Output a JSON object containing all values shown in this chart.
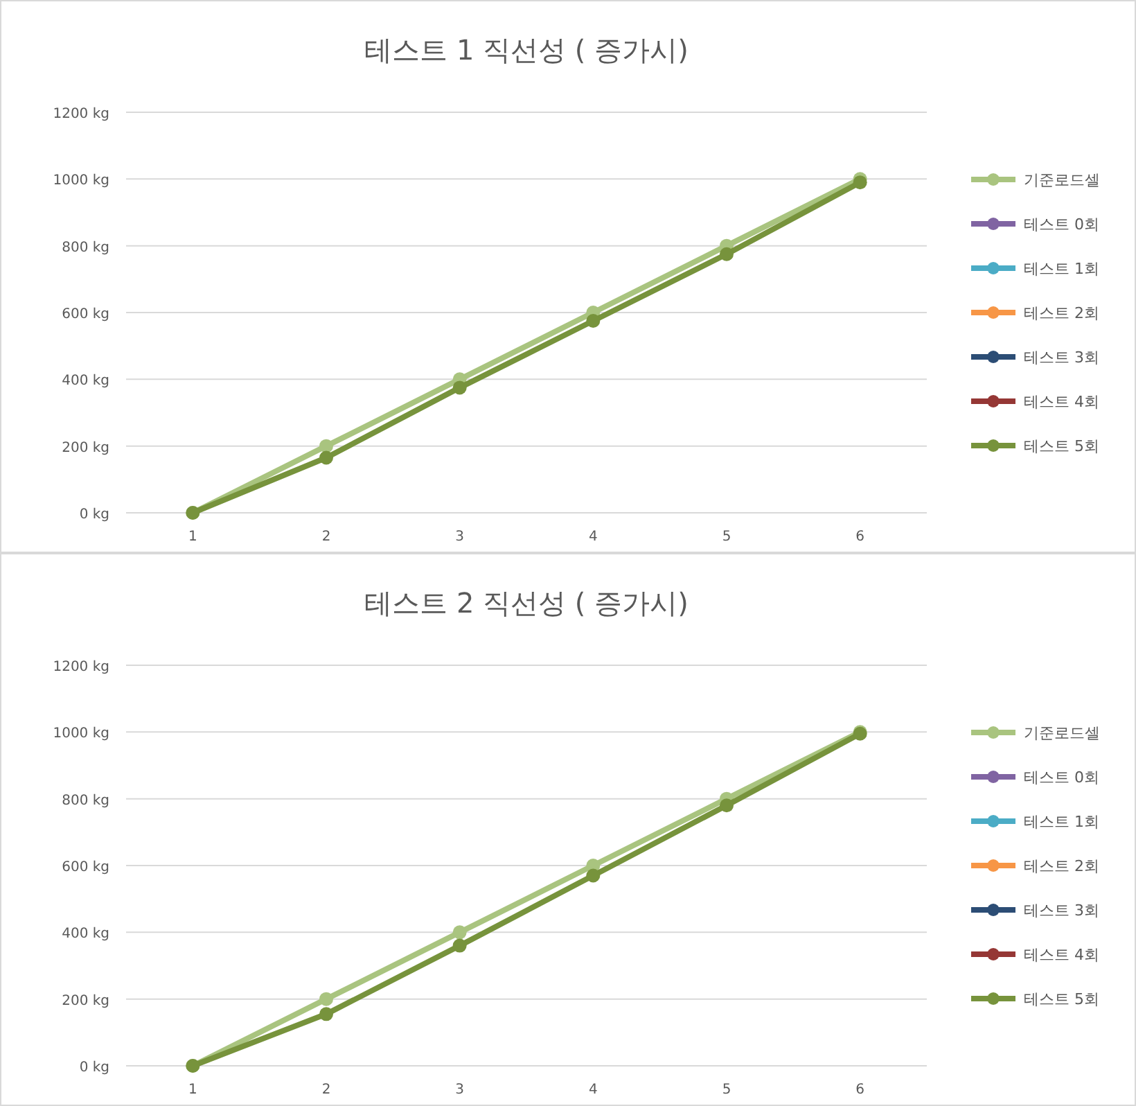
{
  "chart_data": [
    {
      "type": "line",
      "title": "테스트 1 직선성 ( 증가시)",
      "categories": [
        "1",
        "2",
        "3",
        "4",
        "5",
        "6"
      ],
      "ylim": [
        0,
        1200
      ],
      "yticks": [
        {
          "value": 0,
          "label": "0 kg"
        },
        {
          "value": 200,
          "label": "200 kg"
        },
        {
          "value": 400,
          "label": "400 kg"
        },
        {
          "value": 600,
          "label": "600 kg"
        },
        {
          "value": 800,
          "label": "800 kg"
        },
        {
          "value": 1000,
          "label": "1000 kg"
        },
        {
          "value": 1200,
          "label": "1200 kg"
        }
      ],
      "grid": "y",
      "legend": "right",
      "marker": "circle",
      "line_style": "solid",
      "series": [
        {
          "name": "기준로드셀",
          "color": "#a9c47f",
          "values": [
            0,
            200,
            400,
            600,
            800,
            1000
          ]
        },
        {
          "name": "테스트 0회",
          "color": "#8064a2",
          "values": [
            null,
            null,
            null,
            null,
            null,
            null
          ]
        },
        {
          "name": "테스트 1회",
          "color": "#4bacc6",
          "values": [
            null,
            null,
            null,
            null,
            null,
            null
          ]
        },
        {
          "name": "테스트 2회",
          "color": "#f79646",
          "values": [
            null,
            null,
            null,
            null,
            null,
            null
          ]
        },
        {
          "name": "테스트 3회",
          "color": "#2c4d75",
          "values": [
            null,
            null,
            null,
            null,
            null,
            null
          ]
        },
        {
          "name": "테스트 4회",
          "color": "#953735",
          "values": [
            null,
            null,
            null,
            null,
            null,
            null
          ]
        },
        {
          "name": "테스트 5회",
          "color": "#77933c",
          "values": [
            0,
            165,
            375,
            575,
            775,
            990
          ]
        }
      ]
    },
    {
      "type": "line",
      "title": "테스트 2 직선성 ( 증가시)",
      "categories": [
        "1",
        "2",
        "3",
        "4",
        "5",
        "6"
      ],
      "ylim": [
        0,
        1200
      ],
      "yticks": [
        {
          "value": 0,
          "label": "0 kg"
        },
        {
          "value": 200,
          "label": "200 kg"
        },
        {
          "value": 400,
          "label": "400 kg"
        },
        {
          "value": 600,
          "label": "600 kg"
        },
        {
          "value": 800,
          "label": "800 kg"
        },
        {
          "value": 1000,
          "label": "1000 kg"
        },
        {
          "value": 1200,
          "label": "1200 kg"
        }
      ],
      "grid": "y",
      "legend": "right",
      "marker": "circle",
      "line_style": "solid",
      "series": [
        {
          "name": "기준로드셀",
          "color": "#a9c47f",
          "values": [
            0,
            200,
            400,
            600,
            800,
            1000
          ]
        },
        {
          "name": "테스트 0회",
          "color": "#8064a2",
          "values": [
            null,
            null,
            null,
            null,
            null,
            null
          ]
        },
        {
          "name": "테스트 1회",
          "color": "#4bacc6",
          "values": [
            null,
            null,
            null,
            null,
            null,
            null
          ]
        },
        {
          "name": "테스트 2회",
          "color": "#f79646",
          "values": [
            null,
            null,
            null,
            null,
            null,
            null
          ]
        },
        {
          "name": "테스트 3회",
          "color": "#2c4d75",
          "values": [
            null,
            null,
            null,
            null,
            null,
            null
          ]
        },
        {
          "name": "테스트 4회",
          "color": "#953735",
          "values": [
            null,
            null,
            null,
            null,
            null,
            null
          ]
        },
        {
          "name": "테스트 5회",
          "color": "#77933c",
          "values": [
            0,
            155,
            360,
            570,
            780,
            995
          ]
        }
      ]
    }
  ]
}
